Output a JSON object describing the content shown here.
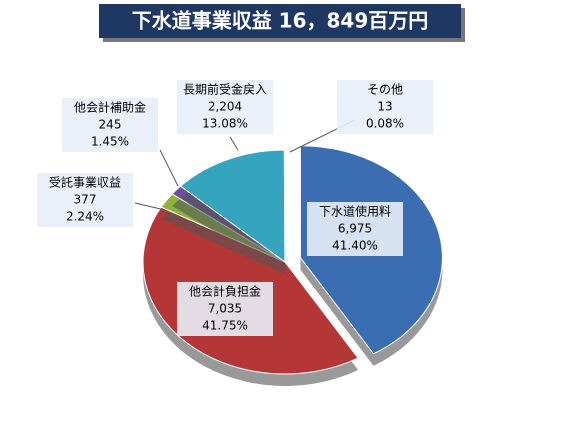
{
  "chart_data": {
    "type": "pie",
    "title": "下水道事業収益 16，849百万円",
    "categories": [
      "下水道使用料",
      "他会計負担金",
      "受託事業収益",
      "他会計補助金",
      "長期前受金戻入",
      "その他"
    ],
    "values": [
      6975,
      7035,
      377,
      245,
      2204,
      13
    ],
    "value_labels": [
      "6,975",
      "7,035",
      "377",
      "245",
      "2,204",
      "13"
    ],
    "percentages": [
      41.4,
      41.75,
      2.24,
      1.45,
      13.08,
      0.08
    ],
    "percent_labels": [
      "41.40%",
      "41.75%",
      "2.24%",
      "1.45%",
      "13.08%",
      "0.08%"
    ],
    "colors": [
      "#3b6db3",
      "#b53636",
      "#8cb43c",
      "#6b4f9e",
      "#35a5bf",
      "#d9d9d9"
    ]
  }
}
